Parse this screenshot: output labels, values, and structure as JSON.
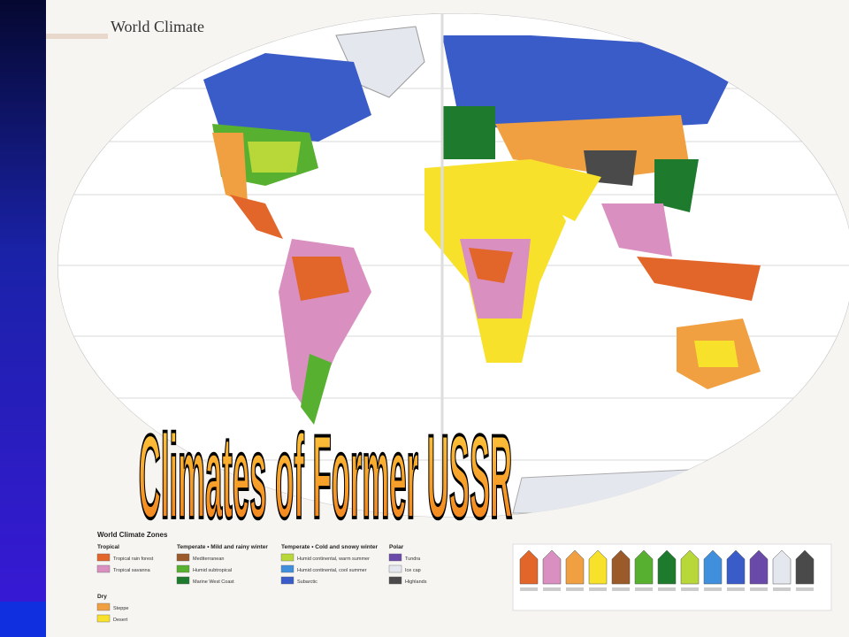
{
  "map_title": "World Climate",
  "slide_title": "Climates of Former USSR",
  "legend": {
    "title": "World Climate Zones",
    "groups": [
      {
        "name": "Tropical",
        "items": [
          {
            "label": "Tropical rain forest",
            "color": "#e2652a"
          },
          {
            "label": "Tropical savanna",
            "color": "#d98fc0"
          }
        ]
      },
      {
        "name": "Dry",
        "items": [
          {
            "label": "Steppe",
            "color": "#f0a040"
          },
          {
            "label": "Desert",
            "color": "#f7e12a"
          }
        ]
      },
      {
        "name": "Temperate • Mild and rainy winter",
        "items": [
          {
            "label": "Mediterranean",
            "color": "#9a5a2a"
          },
          {
            "label": "Humid subtropical",
            "color": "#58b030"
          },
          {
            "label": "Marine West Coast",
            "color": "#1e7a2c"
          }
        ]
      },
      {
        "name": "Temperate • Cold and snowy winter",
        "items": [
          {
            "label": "Humid continental, warm summer",
            "color": "#b8d83a"
          },
          {
            "label": "Humid continental, cool summer",
            "color": "#3f8fdc"
          },
          {
            "label": "Subarctic",
            "color": "#3a5cc8"
          }
        ]
      },
      {
        "name": "Polar",
        "items": [
          {
            "label": "Tundra",
            "color": "#6a4aa8"
          },
          {
            "label": "Ice cap",
            "color": "#e4e8ee"
          },
          {
            "label": "Highlands",
            "color": "#4a4a4a"
          }
        ]
      }
    ]
  }
}
